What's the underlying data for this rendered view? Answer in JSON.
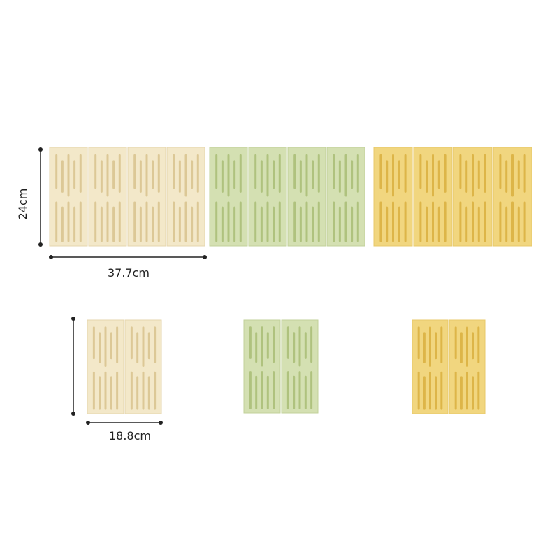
{
  "dimensions": {
    "height": "24cm",
    "width": "37.7cm",
    "small_width": "18.8cm"
  }
}
